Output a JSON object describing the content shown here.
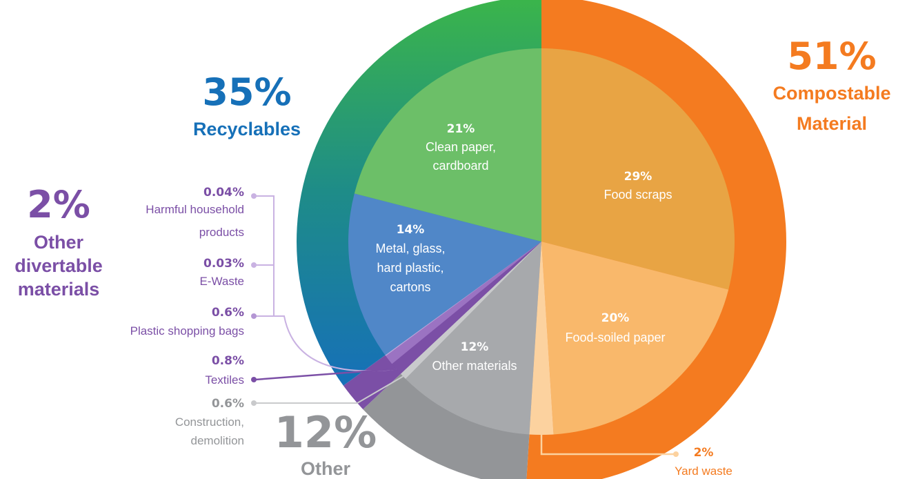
{
  "chart_data": {
    "type": "pie",
    "groups": [
      {
        "id": "compost",
        "pct": "51%",
        "label_lines": [
          "Compostable",
          "Material"
        ],
        "value": 51,
        "color": "#f47b20"
      },
      {
        "id": "other",
        "pct": "12%",
        "label_lines": [
          "Other"
        ],
        "value": 12,
        "color": "#939598"
      },
      {
        "id": "divert",
        "pct": "2%",
        "label_lines": [
          "Other",
          "divertable",
          "materials"
        ],
        "value": 2,
        "color": "#7b4fa6"
      },
      {
        "id": "recycle",
        "pct": "35%",
        "label_lines": [
          "Recyclables"
        ],
        "value": 35,
        "color": "#1670b8"
      }
    ],
    "slices": [
      {
        "pct": "29%",
        "label_lines": [
          "Food scraps"
        ],
        "value": 29,
        "group": "compost",
        "color": "#e8a444"
      },
      {
        "pct": "20%",
        "label_lines": [
          "Food-soiled paper"
        ],
        "value": 20,
        "group": "compost",
        "color": "#f9b86b"
      },
      {
        "pct": "2%",
        "label_lines": [
          "Yard waste"
        ],
        "value": 2,
        "group": "compost",
        "color": "#fcd29f"
      },
      {
        "pct": "12%",
        "label_lines": [
          "Other materials"
        ],
        "value": 12,
        "group": "other",
        "color": "#a7a9ac"
      },
      {
        "pct": "0.6%",
        "label_lines": [
          "Construction,",
          "demolition"
        ],
        "value": 0.6,
        "group": "other",
        "color": "#c9cacc"
      },
      {
        "pct": "0.8%",
        "label_lines": [
          "Textiles"
        ],
        "value": 0.8,
        "group": "divert",
        "color": "#7b4fa6"
      },
      {
        "pct": "0.6%",
        "label_lines": [
          "Plastic shopping bags"
        ],
        "value": 0.6,
        "group": "divert",
        "color": "#9b73c2"
      },
      {
        "pct": "0.03%",
        "label_lines": [
          "E-Waste"
        ],
        "value": 0.03,
        "group": "divert",
        "color": "#b496d4"
      },
      {
        "pct": "0.04%",
        "label_lines": [
          "Harmful household",
          "products"
        ],
        "value": 0.04,
        "group": "divert",
        "color": "#c9b2e2"
      },
      {
        "pct": "14%",
        "label_lines": [
          "Metal, glass,",
          "hard plastic,",
          "cartons"
        ],
        "value": 14,
        "group": "recycle",
        "color": "#5087c8"
      },
      {
        "pct": "21%",
        "label_lines": [
          "Clean paper,",
          "cardboard"
        ],
        "value": 21,
        "group": "recycle",
        "color": "#6cbf68"
      }
    ]
  }
}
